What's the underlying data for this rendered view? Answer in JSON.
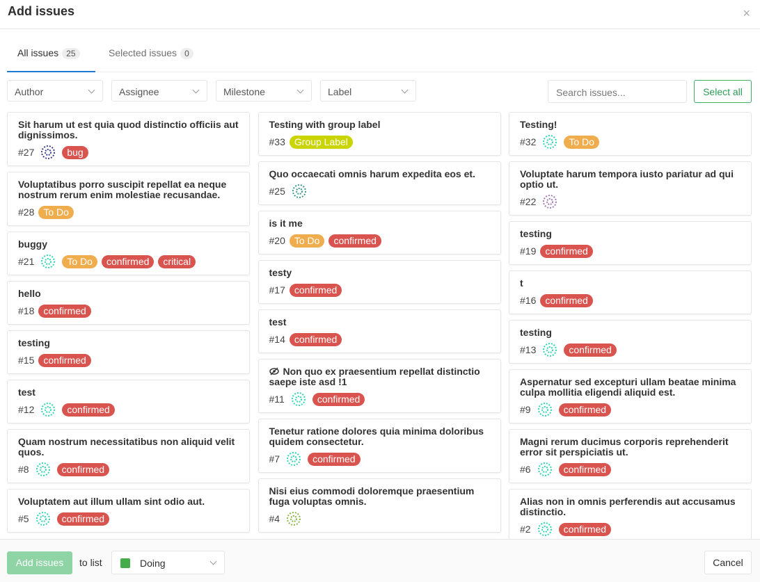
{
  "header": {
    "title": "Add issues",
    "close": "×"
  },
  "tabs": [
    {
      "label": "All issues",
      "count": 25
    },
    {
      "label": "Selected issues",
      "count": 0
    }
  ],
  "filters": [
    "Author",
    "Assignee",
    "Milestone",
    "Label"
  ],
  "search_placeholder": "Search issues...",
  "select_all": "Select all",
  "columns": [
    [
      {
        "title": "Sit harum ut est quia quod distinctio officiis aut dignissimos.",
        "number": "#27",
        "avatar": "#3a3f8f",
        "labels": [
          {
            "text": "bug",
            "color": "#d9534f"
          }
        ]
      },
      {
        "title": "Voluptatibus porro suscipit repellat ea neque nostrum rerum enim molestiae recusandae.",
        "number": "#28",
        "labels": [
          {
            "text": "To Do",
            "color": "#f0ad4e"
          }
        ]
      },
      {
        "title": "buggy",
        "number": "#21",
        "avatar": "#2fd6b0",
        "labels": [
          {
            "text": "To Do",
            "color": "#f0ad4e"
          },
          {
            "text": "confirmed",
            "color": "#d9534f"
          },
          {
            "text": "critical",
            "color": "#d9534f"
          }
        ]
      },
      {
        "title": "hello",
        "number": "#18",
        "labels": [
          {
            "text": "confirmed",
            "color": "#d9534f"
          }
        ]
      },
      {
        "title": "testing",
        "number": "#15",
        "labels": [
          {
            "text": "confirmed",
            "color": "#d9534f"
          }
        ]
      },
      {
        "title": "test",
        "number": "#12",
        "avatar": "#2fd6b0",
        "labels": [
          {
            "text": "confirmed",
            "color": "#d9534f"
          }
        ]
      },
      {
        "title": "Quam nostrum necessitatibus non aliquid velit quos.",
        "number": "#8",
        "avatar": "#2fd6b0",
        "labels": [
          {
            "text": "confirmed",
            "color": "#d9534f"
          }
        ]
      },
      {
        "title": "Voluptatem aut illum ullam sint odio aut.",
        "number": "#5",
        "avatar": "#2fd6b0",
        "labels": [
          {
            "text": "confirmed",
            "color": "#d9534f"
          }
        ]
      }
    ],
    [
      {
        "title": "Testing with group label",
        "number": "#33",
        "labels": [
          {
            "text": "Group Label",
            "color": "#c9d400"
          }
        ]
      },
      {
        "title": "Quo occaecati omnis harum expedita eos et.",
        "number": "#25",
        "avatar": "#3a9a8f",
        "labels": []
      },
      {
        "title": "is it me",
        "number": "#20",
        "labels": [
          {
            "text": "To Do",
            "color": "#f0ad4e"
          },
          {
            "text": "confirmed",
            "color": "#d9534f"
          }
        ]
      },
      {
        "title": "testy",
        "number": "#17",
        "labels": [
          {
            "text": "confirmed",
            "color": "#d9534f"
          }
        ]
      },
      {
        "title": "test",
        "number": "#14",
        "labels": [
          {
            "text": "confirmed",
            "color": "#d9534f"
          }
        ]
      },
      {
        "title": "Non quo ex praesentium repellat distinctio saepe iste asd !1",
        "confidential": true,
        "number": "#11",
        "avatar": "#2fd6b0",
        "labels": [
          {
            "text": "confirmed",
            "color": "#d9534f"
          }
        ]
      },
      {
        "title": "Tenetur ratione dolores quia minima doloribus quidem consectetur.",
        "number": "#7",
        "avatar": "#2fd6b0",
        "labels": [
          {
            "text": "confirmed",
            "color": "#d9534f"
          }
        ]
      },
      {
        "title": "Nisi eius commodi doloremque praesentium fuga voluptas omnis.",
        "number": "#4",
        "avatar": "#8ab84a",
        "labels": []
      }
    ],
    [
      {
        "title": "Testing!",
        "number": "#32",
        "avatar": "#2fd6b0",
        "labels": [
          {
            "text": "To Do",
            "color": "#f0ad4e"
          }
        ]
      },
      {
        "title": "Voluptate harum tempora iusto pariatur ad qui optio ut.",
        "number": "#22",
        "avatar": "#a67bb5",
        "labels": []
      },
      {
        "title": "testing",
        "number": "#19",
        "labels": [
          {
            "text": "confirmed",
            "color": "#d9534f"
          }
        ]
      },
      {
        "title": "t",
        "number": "#16",
        "labels": [
          {
            "text": "confirmed",
            "color": "#d9534f"
          }
        ]
      },
      {
        "title": "testing",
        "number": "#13",
        "avatar": "#2fd6b0",
        "labels": [
          {
            "text": "confirmed",
            "color": "#d9534f"
          }
        ]
      },
      {
        "title": "Aspernatur sed excepturi ullam beatae minima culpa mollitia eligendi aliquid est.",
        "number": "#9",
        "avatar": "#2fd6b0",
        "labels": [
          {
            "text": "confirmed",
            "color": "#d9534f"
          }
        ]
      },
      {
        "title": "Magni rerum ducimus corporis reprehenderit error sit perspiciatis ut.",
        "number": "#6",
        "avatar": "#2fd6b0",
        "labels": [
          {
            "text": "confirmed",
            "color": "#d9534f"
          }
        ]
      },
      {
        "title": "Alias non in omnis perferendis aut accusamus distinctio.",
        "number": "#2",
        "avatar": "#2fd6b0",
        "labels": [
          {
            "text": "confirmed",
            "color": "#d9534f"
          }
        ]
      }
    ]
  ],
  "footer": {
    "add_button": "Add issues",
    "to_list": "to list",
    "list": {
      "name": "Doing",
      "color": "#44ad4a"
    },
    "cancel": "Cancel"
  }
}
